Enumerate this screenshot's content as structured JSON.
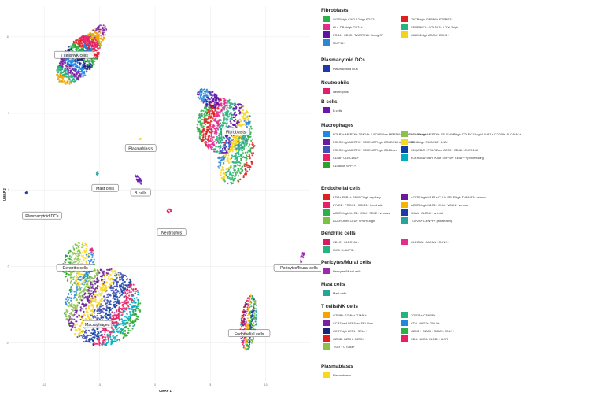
{
  "chart_data": {
    "type": "scatter",
    "xlabel": "UMAP 1",
    "ylabel": "UMAP 2",
    "x_ticks": [
      "-10",
      "-5",
      "0",
      "5",
      "10"
    ],
    "y_ticks": [
      "10",
      "5",
      "0",
      "-5",
      "-10"
    ],
    "xlim": [
      -13,
      14
    ],
    "ylim": [
      -12.5,
      12
    ],
    "grid": true,
    "legend_position": "right",
    "cluster_labels": [
      {
        "text": "T cells/NK cells",
        "x": -7.3,
        "y": 8.8
      },
      {
        "text": "Fibroblasts",
        "x": 7.3,
        "y": 3.8
      },
      {
        "text": "Plasmablasts",
        "x": -1.3,
        "y": 2.7
      },
      {
        "text": "Mast cells",
        "x": -4.5,
        "y": 0.1
      },
      {
        "text": "B cells",
        "x": -1.3,
        "y": -0.2
      },
      {
        "text": "Plasmacytoid DCs",
        "x": -10.2,
        "y": -1.7
      },
      {
        "text": "Neutrophils",
        "x": 1.5,
        "y": -2.8
      },
      {
        "text": "Dendritic cells",
        "x": -7.2,
        "y": -5.1
      },
      {
        "text": "Pericytes/Mural cells",
        "x": 13.0,
        "y": -5.1
      },
      {
        "text": "Macrophages",
        "x": -5.2,
        "y": -8.8
      },
      {
        "text": "Endothelial cells",
        "x": 8.5,
        "y": -9.4
      }
    ],
    "legend": [
      {
        "title": "Fibroblasts",
        "items": [
          {
            "label": "GGT5high CXCL12high FGF7+",
            "color": "#2ab14a"
          },
          {
            "label": "TNXBhigh IGFBP6+ FGFBP2+",
            "color": "#e0201b"
          },
          {
            "label": "HLA-DRAhigh CD74+",
            "color": "#e52b8c"
          },
          {
            "label": "SERPINE1+ COL5A3+ LOXL2high",
            "color": "#26b37e"
          },
          {
            "label": "PRG4+ CD55+ TWIST NB+ lining SF",
            "color": "#5b13a8"
          },
          {
            "label": "CADM1high ACAN+ DKK3+",
            "color": "#f7d21b"
          },
          {
            "label": "MMP13+",
            "color": "#2c86d6"
          }
        ]
      },
      {
        "title": "Plasmacytoid DCs",
        "items": [
          {
            "label": "Plasmacytoid DCs",
            "color": "#1d3aa5"
          }
        ]
      },
      {
        "title": "Neutrophils",
        "items": [
          {
            "label": "Neutrophils",
            "color": "#e01f6e"
          }
        ]
      },
      {
        "title": "B cells",
        "items": [
          {
            "label": "B cells",
            "color": "#6a17ae"
          }
        ]
      },
      {
        "title": "Macrophages",
        "items": [
          {
            "label": "FOLR2+ MERTK+ TIMD4+ & FOLR2low MERTKlow SPP1+ subsets",
            "color": "#1e88e5"
          },
          {
            "label": "FOLR2high MERTK+ SELENOPhigh COLEC12high LYVE1+ CD206+ SLC40A1+",
            "color": "#8bc34a"
          },
          {
            "label": "FOLR2high MERTK+ SELENOPhigh COLEC12high TIMD4+",
            "color": "#6a1b9a"
          },
          {
            "label": "CD48high S100A12+ IL1B+",
            "color": "#f9d71c"
          },
          {
            "label": "FOLR2high MERTK+ SELENOPhigh CD48med",
            "color": "#3f51b5"
          },
          {
            "label": "C1QA/B/C+ FOLR2low CCR2+ CD48+ CLEC10A",
            "color": "#0d3fa8"
          },
          {
            "label": "CD48+ CLEC10A+",
            "color": "#e91e63"
          },
          {
            "label": "FOLR2low MERTKlow TOP2A+ CENPF+ proliferating",
            "color": "#00acc1"
          },
          {
            "label": "CD48low SPP1+",
            "color": "#2aa52a"
          }
        ]
      },
      {
        "title": "Endothelial cells",
        "items": [
          {
            "label": "KDR+ SPP1+ SPARChigh capillary",
            "color": "#e0201b"
          },
          {
            "label": "ACKR1high IL1R1+ CLU+ SELEhigh TNFAIP3+ venous",
            "color": "#6a1b9a"
          },
          {
            "label": "LYVE1+ PROX1+ CCL21+ lymphatic",
            "color": "#e91e63"
          },
          {
            "label": "ACKR1high IL1R1+ CLU+ VCAN+ venous",
            "color": "#f4b400"
          },
          {
            "label": "ACKR1high IL1R1+ CLU+ SELE+ venous",
            "color": "#2ab14a"
          },
          {
            "label": "GJA4+ CLDN5+ arterial",
            "color": "#1d3aa5"
          },
          {
            "label": "ACKR1med CLU+ SPARChigh",
            "color": "#7cc242"
          },
          {
            "label": "TOP2A+ CENPF+ proliferating",
            "color": "#26a69a"
          }
        ]
      },
      {
        "title": "Dendritic cells",
        "items": [
          {
            "label": "CD1C+ CLEC10A+",
            "color": "#d81b60"
          },
          {
            "label": "CLEC9A+ CADM1+ CLNK+",
            "color": "#e52b8c"
          },
          {
            "label": "IDO1+ LAMP3+",
            "color": "#26b37e"
          }
        ]
      },
      {
        "title": "Pericytes/Mural cells",
        "items": [
          {
            "label": "Pericytes/Mural cells",
            "color": "#9c27b0"
          }
        ]
      },
      {
        "title": "Mast cells",
        "items": [
          {
            "label": "Mast cells",
            "color": "#26a69a"
          }
        ]
      },
      {
        "title": "T cells/NK cells",
        "items": [
          {
            "label": "GZMB+ GZMH+ GZMK+",
            "color": "#f4a300"
          },
          {
            "label": "TOP2A+ CENPF+",
            "color": "#26b37e"
          },
          {
            "label": "CCR7med LEF1low SELLlow",
            "color": "#7b1fa2"
          },
          {
            "label": "CD3- NKG7+ GNLY+",
            "color": "#1e88e5"
          },
          {
            "label": "CCR7high LEF1+ SELL+",
            "color": "#1a237e"
          },
          {
            "label": "GZMB+ GZMH+ GZMK- GNLY+",
            "color": "#2ab14a"
          },
          {
            "label": "GZMB- GZMH- GZMK+",
            "color": "#e0201b"
          },
          {
            "label": "CD3- NKG7- KLRB1+ IL7R+",
            "color": "#e91e63"
          },
          {
            "label": "TIGIT+ CTLA4+",
            "color": "#8bc34a"
          }
        ]
      },
      {
        "title": "Plasmablasts",
        "items": [
          {
            "label": "Plasmablasts",
            "color": "#f9d71c"
          }
        ]
      }
    ]
  }
}
